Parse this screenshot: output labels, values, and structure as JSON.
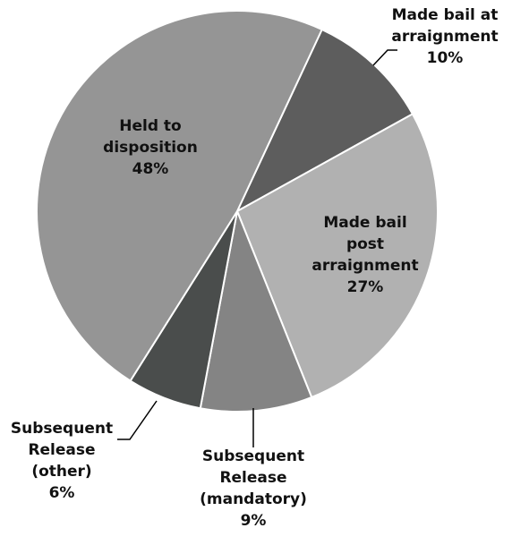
{
  "chart_data": {
    "type": "pie",
    "slices": [
      {
        "label": [
          "Made bail at",
          "arraignment"
        ],
        "value": 10,
        "value_text": "10%",
        "color": "#5d5d5d"
      },
      {
        "label": [
          "Made bail",
          "post",
          "arraignment"
        ],
        "value": 27,
        "value_text": "27%",
        "color": "#b1b1b1"
      },
      {
        "label": [
          "Subsequent",
          "Release",
          "(mandatory)"
        ],
        "value": 9,
        "value_text": "9%",
        "color": "#848484"
      },
      {
        "label": [
          "Subsequent",
          "Release",
          "(other)"
        ],
        "value": 6,
        "value_text": "6%",
        "color": "#4a4d4c"
      },
      {
        "label": [
          "Held to",
          "disposition"
        ],
        "value": 48,
        "value_text": "48%",
        "color": "#959595"
      }
    ]
  }
}
